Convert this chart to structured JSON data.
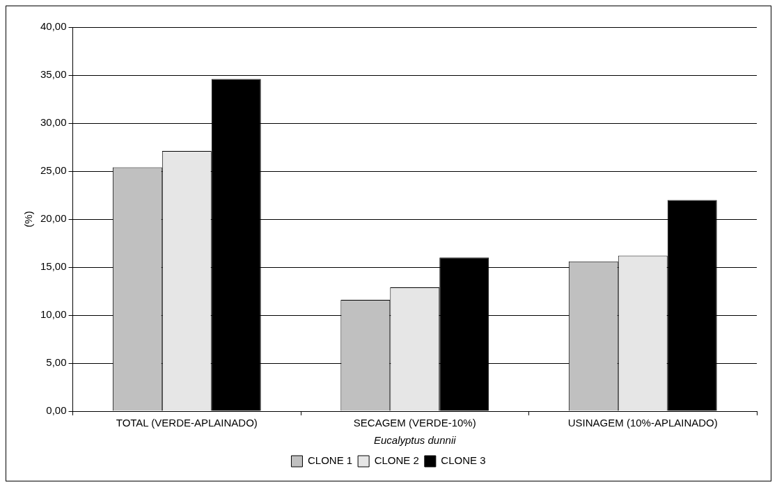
{
  "chart_data": {
    "type": "bar",
    "xlabel": "Eucalyptus dunnii",
    "ylabel": "(%)",
    "categories": [
      "TOTAL (VERDE-APLAINADO)",
      "SECAGEM (VERDE-10%)",
      "USINAGEM (10%-APLAINADO)"
    ],
    "series": [
      {
        "name": "CLONE 1",
        "color": "#c0c0c0",
        "values": [
          25.4,
          11.6,
          15.6
        ]
      },
      {
        "name": "CLONE 2",
        "color": "#e6e6e6",
        "values": [
          27.1,
          12.9,
          16.2
        ]
      },
      {
        "name": "CLONE 3",
        "color": "#000000",
        "values": [
          34.6,
          16.0,
          22.0
        ]
      }
    ],
    "ylim": [
      0,
      40
    ],
    "yticks": [
      {
        "value": 0,
        "label": "0,00"
      },
      {
        "value": 5,
        "label": "5,00"
      },
      {
        "value": 10,
        "label": "10,00"
      },
      {
        "value": 15,
        "label": "15,00"
      },
      {
        "value": 20,
        "label": "20,00"
      },
      {
        "value": 25,
        "label": "25,00"
      },
      {
        "value": 30,
        "label": "30,00"
      },
      {
        "value": 35,
        "label": "35,00"
      },
      {
        "value": 40,
        "label": "40,00"
      }
    ],
    "grid": "y",
    "legend": "bottom"
  }
}
